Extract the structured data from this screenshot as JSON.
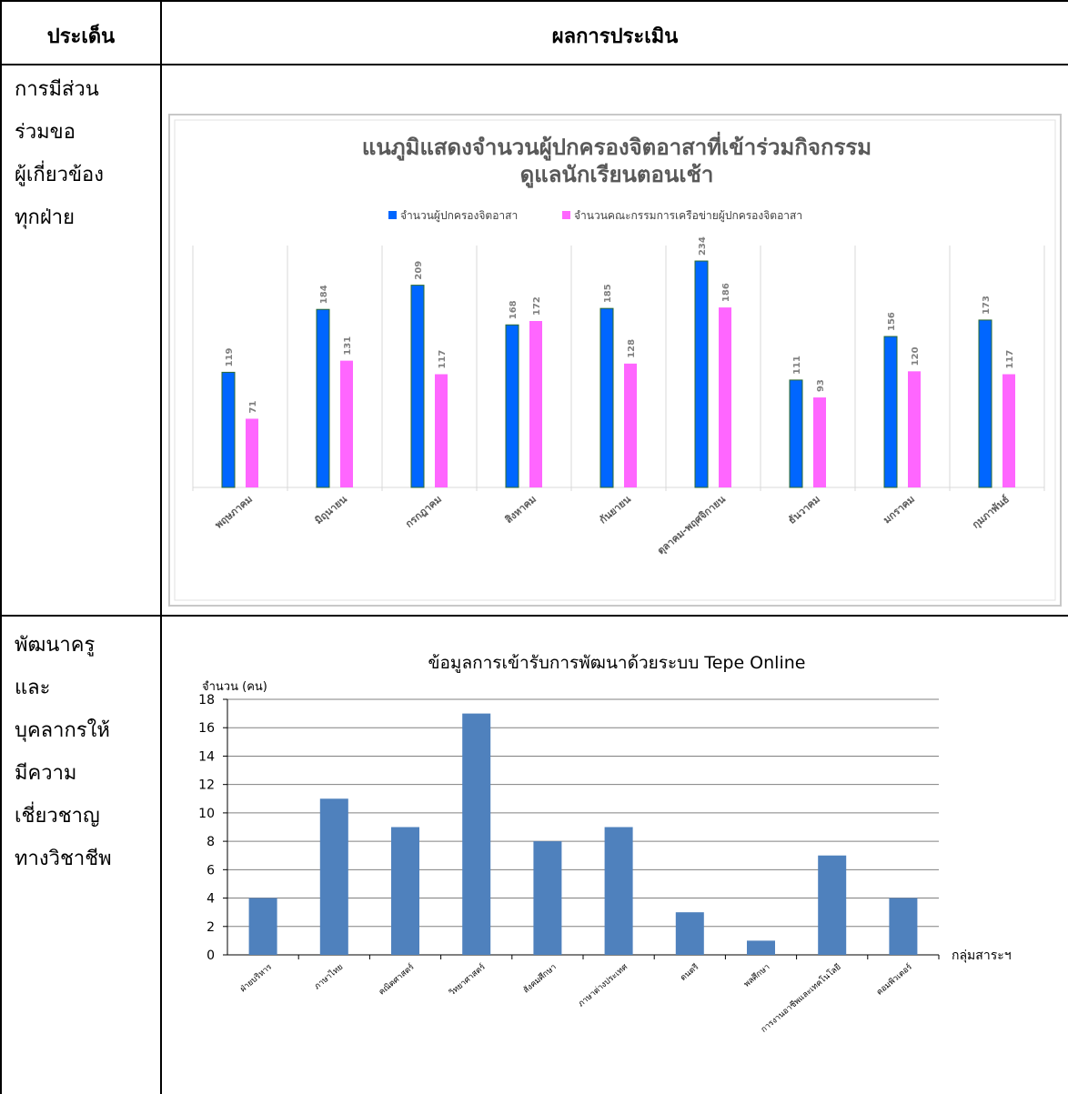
{
  "table": {
    "headers": [
      "ประเด็น",
      "ผลการประเมิน"
    ],
    "rows": [
      {
        "lines": [
          "การมีส่วน",
          "ร่วมขอ",
          "ผู้เกี่ยวข้อง",
          "ทุกฝ่าย"
        ]
      },
      {
        "lines": [
          "พัฒนาครู",
          "และ",
          "บุคลากรให้",
          "มีความ",
          "เชี่ยวชาญ",
          "ทางวิชาชีพ"
        ]
      }
    ]
  },
  "chart_data": [
    {
      "type": "bar",
      "title": "แนภูมิแสดงจำนวนผู้ปกครองจิตอาสาที่เข้าร่วมกิจกรรม ดูแลนักเรียนตอนเช้า",
      "title_lines": [
        "แนภูมิแสดงจำนวนผู้ปกครองจิตอาสาที่เข้าร่วมกิจกรรม",
        "ดูแลนักเรียนตอนเช้า"
      ],
      "legend_position": "top",
      "grid": "vertical-category-separators",
      "categories": [
        "พฤษภาคม",
        "มิถุนายน",
        "กรกฎาคม",
        "สิงหาคม",
        "กันยายน",
        "ตุลาคม-พฤศจิกายน",
        "ธันวาคม",
        "มกราคม",
        "กุมภาพันธ์"
      ],
      "series": [
        {
          "name": "จำนวนผู้ปกครองจิตอาสา",
          "color": "#0066ff",
          "values": [
            119,
            184,
            209,
            168,
            185,
            234,
            111,
            156,
            173
          ]
        },
        {
          "name": "จำนวนคณะกรรมการเครือข่ายผู้ปกครองจิตอาสา",
          "color": "#ff66ff",
          "values": [
            71,
            131,
            117,
            172,
            128,
            186,
            93,
            120,
            117
          ]
        }
      ],
      "ylim": [
        0,
        250
      ]
    },
    {
      "type": "bar",
      "title": "ข้อมูลการเข้ารับการพัฒนาด้วยระบบ Tepe Online",
      "ylabel": "จำนวน (คน)",
      "xlabel": "กลุ่มสาระฯ",
      "ylim": [
        0,
        18
      ],
      "yticks": [
        "0",
        "2",
        "4",
        "6",
        "8",
        "10",
        "12",
        "14",
        "16",
        "18"
      ],
      "grid": "horizontal",
      "bar_color": "#4f81bd",
      "categories": [
        "ฝ่ายบริหาร",
        "ภาษาไทย",
        "คณิตศาสตร์",
        "วิทยาศาสตร์",
        "สังคมศึกษา",
        "ภาษาต่างประเทศ",
        "ดนตรี",
        "พลศึกษา",
        "การงานอาชีพและเทคโนโลยี",
        "คอมพิวเตอร์"
      ],
      "values": [
        4,
        11,
        9,
        17,
        8,
        9,
        3,
        1,
        7,
        4
      ]
    }
  ]
}
